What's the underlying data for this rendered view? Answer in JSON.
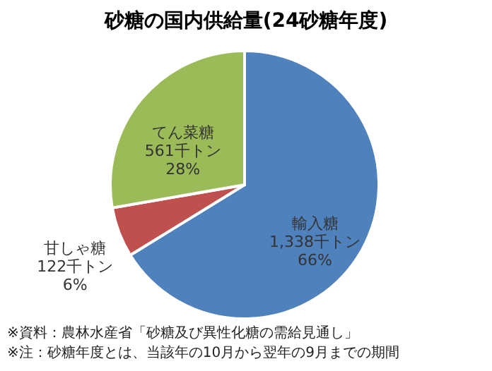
{
  "chart_data": {
    "type": "pie",
    "title": "砂糖の国内供給量(24砂糖年度)",
    "categories": [
      "輸入糖",
      "甘しゃ糖",
      "てん菜糖"
    ],
    "values": [
      1338,
      122,
      561
    ],
    "colors": [
      "#4f81bd",
      "#c0504d",
      "#9bbb59"
    ],
    "value_labels": [
      "1,338千トン\n66%",
      "122千トン\n6%",
      "561千トン\n28%"
    ],
    "legend": false,
    "annotations": [
      "※資料：農林水産省「砂糖及び異性化糖の需給見通し」",
      "※注：砂糖年度とは、当該年の10月から翌年の9月までの期間"
    ]
  }
}
